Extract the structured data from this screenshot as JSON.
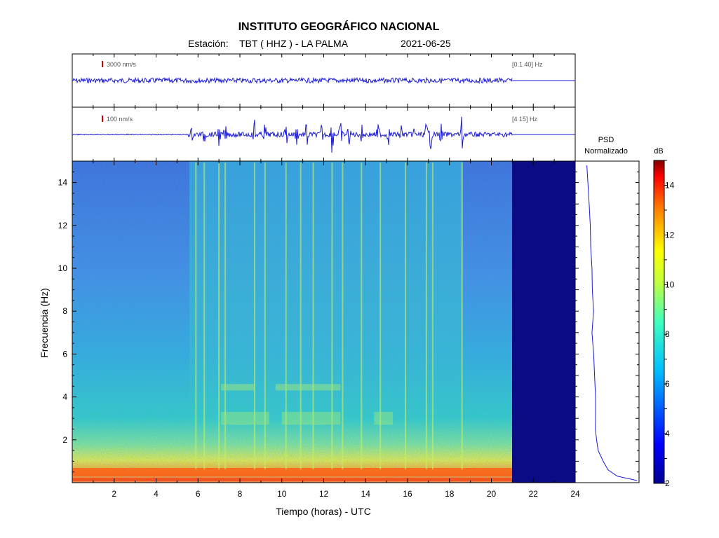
{
  "header": {
    "title": "INSTITUTO GEOGRÁFICO NACIONAL",
    "station_label": "Estación:",
    "station": "TBT ( HHZ ) - LA PALMA",
    "date": "2021-06-25"
  },
  "colors": {
    "axis": "#000000",
    "trace": "#1a1ad8",
    "nodata": "#0b0b86",
    "scale_mark": "#d00000"
  },
  "chart_data": [
    {
      "type": "line",
      "name": "seismogram-broadband",
      "scale_label": "3000 nm/s",
      "band_label": "[0.1 40] Hz",
      "x_range_hours": [
        0,
        24
      ],
      "data_end_hour": 21,
      "relative_amplitude": 0.08
    },
    {
      "type": "line",
      "name": "seismogram-filtered",
      "scale_label": "100 nm/s",
      "band_label": "[4 15] Hz",
      "x_range_hours": [
        0,
        24
      ],
      "data_end_hour": 21,
      "bursts_hours": [
        5.7,
        6.3,
        7.0,
        7.3,
        8.7,
        9.2,
        10.2,
        10.7,
        11.2,
        11.9,
        12.4,
        12.8,
        13.2,
        13.8,
        14.6,
        15.1,
        15.7,
        16.3,
        16.9,
        17.1,
        17.6,
        18.6
      ],
      "burst_amplitudes": [
        0.35,
        0.55,
        0.5,
        0.45,
        0.85,
        0.6,
        0.7,
        0.55,
        0.7,
        0.5,
        0.85,
        0.6,
        0.55,
        0.5,
        0.55,
        0.45,
        0.5,
        0.4,
        0.6,
        0.65,
        0.45,
        0.9
      ]
    },
    {
      "type": "heatmap",
      "name": "spectrogram",
      "xlabel": "Tiempo (horas) - UTC",
      "ylabel": "Frecuencia  (Hz)",
      "xlim": [
        0,
        24
      ],
      "ylim": [
        0,
        15
      ],
      "x_ticks": [
        2,
        4,
        6,
        8,
        10,
        12,
        14,
        16,
        18,
        20,
        22,
        24
      ],
      "y_ticks": [
        2,
        4,
        6,
        8,
        10,
        12,
        14
      ],
      "data_end_hour": 21,
      "noisy_period_hours": [
        5.7,
        18.8
      ],
      "event_lines_hours": [
        5.9,
        6.3,
        7.0,
        7.3,
        8.7,
        9.2,
        10.2,
        10.9,
        11.5,
        12.4,
        12.9,
        13.8,
        14.7,
        15.9,
        16.9,
        17.2,
        18.6
      ],
      "low_freq_band_hz": [
        0,
        1
      ],
      "mid_band_hz": [
        2.5,
        4.5
      ]
    },
    {
      "type": "line",
      "name": "psd-normalized",
      "title_line1": "PSD",
      "title_line2": "Normalizado",
      "ylim": [
        0,
        15
      ],
      "freq_hz": [
        0.1,
        0.3,
        0.6,
        1.0,
        1.5,
        2.0,
        2.5,
        3.0,
        4.0,
        5.0,
        6.0,
        7.0,
        8.0,
        9.0,
        10.0,
        11.0,
        12.0,
        13.0,
        14.0,
        14.8
      ],
      "psd_relative": [
        0.98,
        0.6,
        0.42,
        0.32,
        0.25,
        0.22,
        0.2,
        0.19,
        0.17,
        0.16,
        0.14,
        0.13,
        0.13,
        0.12,
        0.12,
        0.1,
        0.09,
        0.08,
        0.05,
        0.02
      ]
    },
    {
      "type": "heatmap",
      "name": "colorbar",
      "label": "dB",
      "ylim": [
        2,
        15
      ],
      "ticks": [
        2,
        4,
        6,
        8,
        10,
        12,
        14
      ]
    }
  ]
}
